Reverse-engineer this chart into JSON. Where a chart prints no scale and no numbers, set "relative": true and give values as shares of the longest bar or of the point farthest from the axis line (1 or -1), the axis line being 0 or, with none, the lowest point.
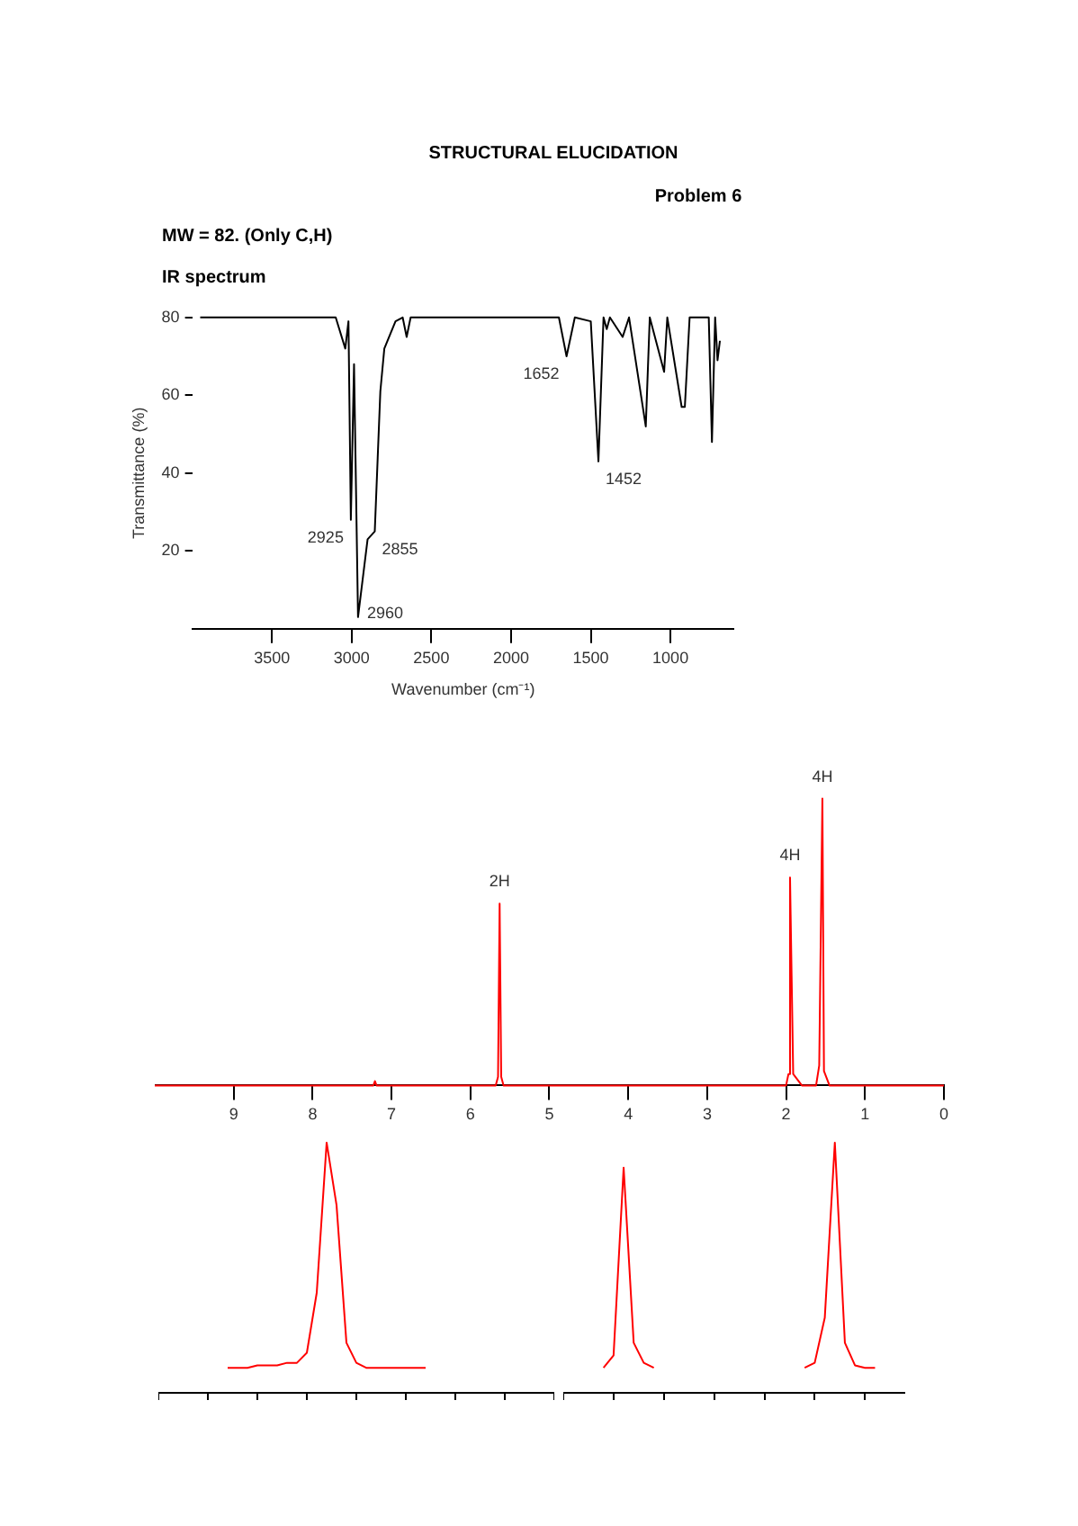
{
  "chart_data": [
    {
      "type": "line",
      "title": "STRUCTURAL ELUCIDATION",
      "subtitle": "Problem 6",
      "annotations": [
        "MW = 82. (Only C,H)",
        "IR spectrum",
        {
          "text": "2925",
          "x": 3005,
          "y": 28
        },
        {
          "text": "2855",
          "x": 2855,
          "y": 25
        },
        {
          "text": "2960",
          "x": 2960,
          "y": 3
        },
        {
          "text": "1652",
          "x": 1652,
          "y": 70
        },
        {
          "text": "1452",
          "x": 1452,
          "y": 43
        }
      ],
      "xlabel": "Wavenumber (cm⁻¹)",
      "ylabel": "Transmittance (%)",
      "x": [
        3950,
        3100,
        3040,
        3020,
        3005,
        2985,
        2960,
        2900,
        2855,
        2820,
        2795,
        2725,
        2680,
        2655,
        2630,
        1700,
        1652,
        1600,
        1500,
        1452,
        1420,
        1400,
        1380,
        1300,
        1260,
        1155,
        1130,
        1040,
        1020,
        930,
        910,
        880,
        760,
        740,
        720,
        705,
        690
      ],
      "values": [
        80,
        80,
        72,
        79,
        28,
        68,
        3,
        23,
        25,
        61,
        72,
        79,
        80,
        75,
        80,
        80,
        70,
        80,
        79,
        43,
        80,
        77,
        80,
        75,
        80,
        52,
        80,
        66,
        80,
        57,
        57,
        80,
        80,
        48,
        80,
        69,
        74
      ],
      "color": "#000000",
      "xlim": [
        4000,
        600
      ],
      "xticks": [
        3500,
        3000,
        2500,
        2000,
        1500,
        1000
      ],
      "ylim": [
        0,
        80
      ],
      "yticks": [
        20,
        40,
        60,
        80
      ],
      "marker": "none"
    },
    {
      "type": "line",
      "annotations": [
        {
          "text": "2H",
          "x": 5.63,
          "y": 0.634
        },
        {
          "text": "4H",
          "x": 1.95,
          "y": 0.725
        },
        {
          "text": "4H",
          "x": 1.54,
          "y": 1.0
        }
      ],
      "x": [
        10,
        7.23,
        7.21,
        7.19,
        5.68,
        5.65,
        5.63,
        5.61,
        5.58,
        2.0,
        1.97,
        1.95,
        1.93,
        1.91,
        1.8,
        1.62,
        1.58,
        1.54,
        1.52,
        1.45,
        0
      ],
      "values": [
        0,
        0,
        0.015,
        0,
        0,
        0.03,
        0.634,
        0.03,
        0,
        0,
        0.04,
        0.725,
        0.38,
        0.04,
        0,
        0,
        0.07,
        1.0,
        0.05,
        0,
        0
      ],
      "color": "#ff0000",
      "relative": true,
      "xlim": [
        10,
        0
      ],
      "xticks": [
        9,
        8,
        7,
        6,
        5,
        4,
        3,
        2,
        1,
        0
      ],
      "marker": "none"
    },
    {
      "type": "line",
      "categories": [
        null,
        null,
        null,
        null,
        null,
        null,
        null,
        null,
        null,
        null,
        null,
        null,
        null,
        null,
        null,
        null,
        null,
        null,
        null,
        null,
        null,
        null,
        null,
        null,
        null,
        null,
        null,
        null,
        null,
        null,
        null,
        null,
        null,
        null,
        null,
        null,
        null,
        null,
        null,
        null,
        null
      ],
      "values": [
        null,
        null,
        null,
        null,
        null,
        null,
        null,
        0.1,
        0.1,
        0.1,
        0.11,
        0.11,
        0.11,
        0.12,
        0.12,
        0.16,
        0.4,
        1.0,
        0.75,
        0.2,
        0.12,
        0.1,
        0.1,
        0.1,
        0.1,
        0.1,
        0.1,
        0.1,
        null,
        null,
        null,
        null,
        null,
        null,
        null,
        null,
        null,
        null,
        null,
        null,
        null
      ],
      "color": "#ff0000",
      "relative": true,
      "tick_labels": false,
      "marker": "none"
    },
    {
      "type": "line",
      "categories": [
        null,
        null,
        null,
        null,
        null,
        null,
        null,
        null,
        null,
        null,
        null,
        null,
        null,
        null,
        null,
        null,
        null,
        null,
        null,
        null,
        null,
        null,
        null,
        null,
        null,
        null,
        null,
        null,
        null,
        null,
        null,
        null,
        null,
        null,
        null
      ],
      "series": [
        {
          "color": "#ff0000",
          "values": [
            null,
            null,
            null,
            null,
            0.1,
            0.15,
            0.9,
            0.2,
            0.12,
            0.1,
            null,
            null,
            null,
            null,
            null,
            null,
            null,
            null,
            null,
            null,
            null,
            null,
            null,
            null,
            null,
            null,
            null,
            null,
            null,
            null,
            null,
            null,
            null,
            null,
            null
          ]
        },
        {
          "color": "#ff0000",
          "values": [
            null,
            null,
            null,
            null,
            null,
            null,
            null,
            null,
            null,
            null,
            null,
            null,
            null,
            null,
            null,
            null,
            null,
            null,
            null,
            null,
            null,
            null,
            null,
            null,
            0.1,
            0.12,
            0.3,
            1.0,
            0.2,
            0.11,
            0.1,
            0.1,
            null,
            null,
            null
          ]
        }
      ],
      "relative": true,
      "tick_labels": false,
      "marker": "none"
    }
  ]
}
